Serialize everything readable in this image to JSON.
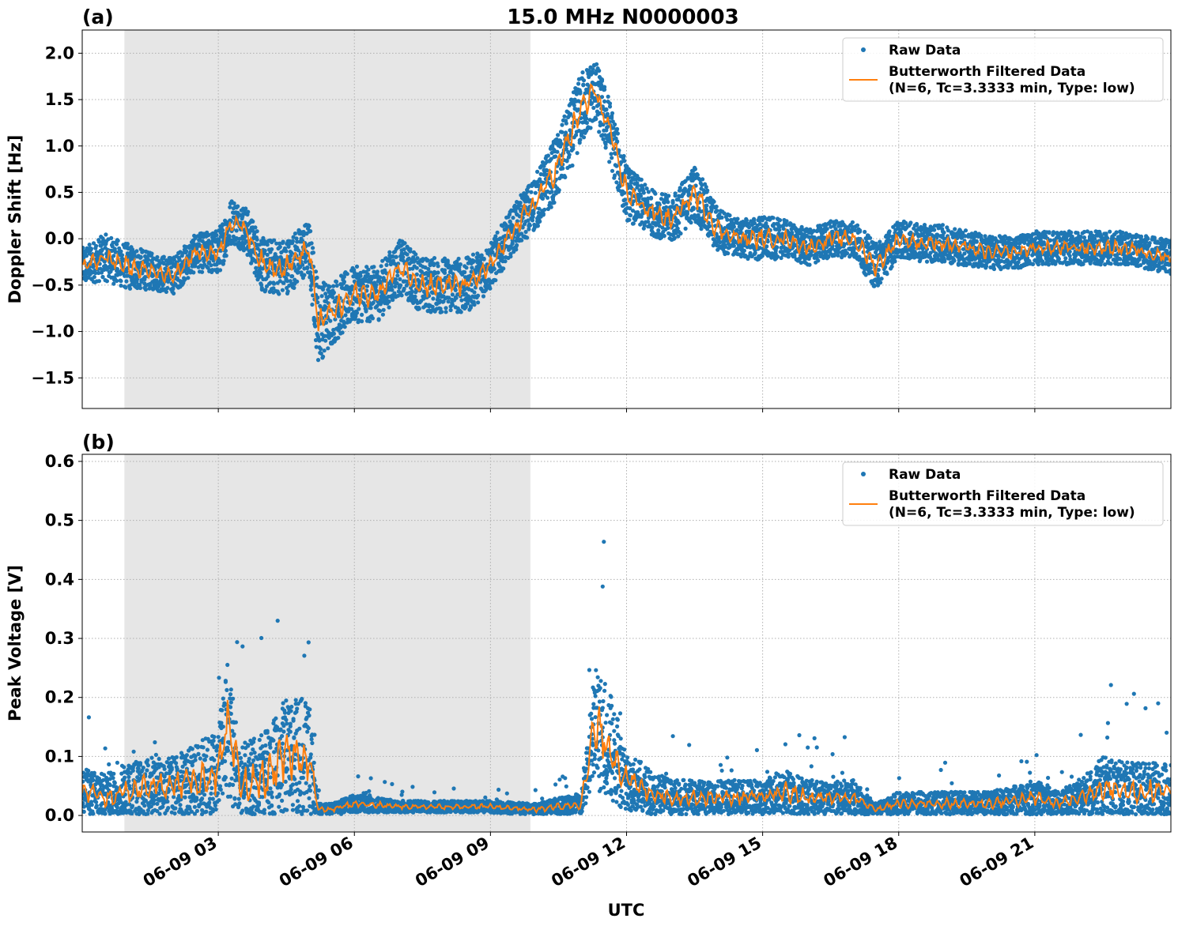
{
  "figure": {
    "title": "15.0 MHz N0000003",
    "xlabel": "UTC"
  },
  "chart_data": [
    {
      "panel_label": "(a)",
      "type": "scatter",
      "ylabel": "Doppler Shift [Hz]",
      "xlim": [
        0.0,
        24.0
      ],
      "ylim": [
        -1.83,
        2.25
      ],
      "yticks": [
        2.0,
        1.5,
        1.0,
        0.5,
        0.0,
        -0.5,
        -1.0,
        -1.5
      ],
      "ytick_labels": [
        "2.0",
        "1.5",
        "1.0",
        "0.5",
        "0.0",
        "−0.5",
        "−1.0",
        "−1.5"
      ],
      "xticks": [
        3,
        6,
        9,
        12,
        15,
        18,
        21
      ],
      "xtick_labels": [
        "06-09 03",
        "06-09 06",
        "06-09 09",
        "06-09 12",
        "06-09 15",
        "06-09 18",
        "06-09 21"
      ],
      "x_unit": "hours UTC",
      "shaded_region": [
        0.93,
        9.88
      ],
      "grid": true,
      "legend_position": "top-right",
      "series": [
        {
          "name": "Raw Data",
          "style": "points",
          "color": "#1f77b4",
          "x": [
            0.0,
            0.5,
            1.0,
            1.5,
            2.0,
            2.5,
            3.0,
            3.3,
            3.6,
            4.0,
            4.5,
            5.0,
            5.2,
            5.5,
            6.0,
            6.5,
            7.0,
            7.5,
            8.0,
            8.5,
            9.0,
            9.5,
            10.0,
            10.5,
            11.0,
            11.3,
            11.6,
            12.0,
            12.5,
            13.0,
            13.5,
            14.0,
            14.5,
            15.0,
            15.5,
            16.0,
            16.5,
            17.0,
            17.5,
            18.0,
            18.5,
            19.0,
            19.5,
            20.0,
            20.5,
            21.0,
            21.5,
            22.0,
            22.5,
            23.0,
            23.5,
            24.0
          ],
          "y": [
            -0.3,
            -0.2,
            -0.3,
            -0.35,
            -0.4,
            -0.15,
            -0.15,
            0.2,
            0.1,
            -0.3,
            -0.3,
            -0.1,
            -0.9,
            -0.8,
            -0.6,
            -0.6,
            -0.3,
            -0.5,
            -0.5,
            -0.5,
            -0.3,
            0.1,
            0.4,
            0.8,
            1.4,
            1.6,
            1.2,
            0.5,
            0.3,
            0.2,
            0.5,
            0.1,
            0.0,
            0.0,
            0.0,
            -0.1,
            0.0,
            0.0,
            -0.3,
            0.0,
            -0.05,
            -0.05,
            -0.1,
            -0.15,
            -0.15,
            -0.1,
            -0.1,
            -0.1,
            -0.1,
            -0.1,
            -0.15,
            -0.2
          ],
          "spread": [
            0.2,
            0.25,
            0.25,
            0.2,
            0.2,
            0.2,
            0.25,
            0.25,
            0.25,
            0.3,
            0.3,
            0.3,
            0.45,
            0.35,
            0.3,
            0.3,
            0.3,
            0.3,
            0.3,
            0.3,
            0.25,
            0.25,
            0.3,
            0.35,
            0.4,
            0.35,
            0.35,
            0.3,
            0.25,
            0.25,
            0.3,
            0.25,
            0.2,
            0.25,
            0.2,
            0.2,
            0.2,
            0.2,
            0.25,
            0.2,
            0.2,
            0.2,
            0.2,
            0.18,
            0.18,
            0.18,
            0.18,
            0.18,
            0.18,
            0.18,
            0.18,
            0.18
          ]
        },
        {
          "name": "Butterworth Filtered Data\n(N=6, Tc=3.3333 min, Type: low)",
          "style": "line",
          "color": "#ff7f0e",
          "x": [
            0.0,
            0.5,
            1.0,
            1.5,
            2.0,
            2.5,
            3.0,
            3.3,
            3.6,
            4.0,
            4.5,
            5.0,
            5.2,
            5.5,
            6.0,
            6.5,
            7.0,
            7.5,
            8.0,
            8.5,
            9.0,
            9.5,
            10.0,
            10.5,
            11.0,
            11.3,
            11.6,
            12.0,
            12.5,
            13.0,
            13.5,
            14.0,
            14.5,
            15.0,
            15.5,
            16.0,
            16.5,
            17.0,
            17.5,
            18.0,
            18.5,
            19.0,
            19.5,
            20.0,
            20.5,
            21.0,
            21.5,
            22.0,
            22.5,
            23.0,
            23.5,
            24.0
          ],
          "y": [
            -0.3,
            -0.2,
            -0.3,
            -0.35,
            -0.4,
            -0.15,
            -0.15,
            0.2,
            0.1,
            -0.3,
            -0.3,
            -0.1,
            -0.9,
            -0.8,
            -0.6,
            -0.6,
            -0.3,
            -0.5,
            -0.5,
            -0.5,
            -0.3,
            0.1,
            0.4,
            0.8,
            1.4,
            1.6,
            1.2,
            0.5,
            0.3,
            0.2,
            0.5,
            0.1,
            0.0,
            0.0,
            0.0,
            -0.1,
            0.0,
            0.0,
            -0.3,
            0.0,
            -0.05,
            -0.05,
            -0.1,
            -0.15,
            -0.15,
            -0.1,
            -0.1,
            -0.1,
            -0.1,
            -0.1,
            -0.15,
            -0.2
          ]
        }
      ]
    },
    {
      "panel_label": "(b)",
      "type": "scatter",
      "ylabel": "Peak Voltage [V]",
      "xlim": [
        0.0,
        24.0
      ],
      "ylim": [
        -0.028,
        0.612
      ],
      "yticks": [
        0.6,
        0.5,
        0.4,
        0.3,
        0.2,
        0.1,
        0.0
      ],
      "ytick_labels": [
        "0.6",
        "0.5",
        "0.4",
        "0.3",
        "0.2",
        "0.1",
        "0.0"
      ],
      "xticks": [
        3,
        6,
        9,
        12,
        15,
        18,
        21
      ],
      "xtick_labels": [
        "06-09 03",
        "06-09 06",
        "06-09 09",
        "06-09 12",
        "06-09 15",
        "06-09 18",
        "06-09 21"
      ],
      "x_unit": "hours UTC",
      "shaded_region": [
        0.93,
        9.88
      ],
      "grid": true,
      "legend_position": "top-right",
      "series": [
        {
          "name": "Raw Data",
          "style": "points",
          "color": "#1f77b4",
          "x": [
            0.0,
            0.5,
            1.0,
            1.5,
            2.0,
            2.5,
            3.0,
            3.2,
            3.5,
            4.0,
            4.5,
            5.0,
            5.2,
            5.5,
            6.0,
            7.0,
            8.0,
            9.0,
            10.0,
            11.0,
            11.3,
            11.6,
            12.0,
            12.5,
            13.0,
            14.0,
            15.0,
            15.5,
            16.0,
            17.0,
            17.5,
            18.0,
            19.0,
            20.0,
            21.0,
            21.5,
            22.0,
            22.5,
            23.0,
            23.5,
            24.0
          ],
          "y": [
            0.04,
            0.03,
            0.04,
            0.05,
            0.05,
            0.06,
            0.07,
            0.15,
            0.05,
            0.06,
            0.1,
            0.1,
            0.01,
            0.01,
            0.02,
            0.015,
            0.015,
            0.015,
            0.01,
            0.02,
            0.15,
            0.12,
            0.06,
            0.04,
            0.03,
            0.03,
            0.03,
            0.04,
            0.03,
            0.03,
            0.01,
            0.02,
            0.02,
            0.02,
            0.03,
            0.02,
            0.03,
            0.05,
            0.04,
            0.04,
            0.04
          ],
          "spread": [
            0.04,
            0.04,
            0.05,
            0.05,
            0.05,
            0.06,
            0.08,
            0.12,
            0.07,
            0.08,
            0.1,
            0.1,
            0.01,
            0.01,
            0.015,
            0.01,
            0.01,
            0.01,
            0.01,
            0.02,
            0.1,
            0.1,
            0.05,
            0.04,
            0.03,
            0.03,
            0.03,
            0.04,
            0.03,
            0.03,
            0.01,
            0.02,
            0.02,
            0.02,
            0.03,
            0.02,
            0.03,
            0.05,
            0.05,
            0.05,
            0.05
          ]
        },
        {
          "name": "Butterworth Filtered Data\n(N=6, Tc=3.3333 min, Type: low)",
          "style": "line",
          "color": "#ff7f0e",
          "x": [
            0.0,
            0.5,
            1.0,
            1.5,
            2.0,
            2.5,
            3.0,
            3.2,
            3.5,
            4.0,
            4.5,
            5.0,
            5.2,
            5.5,
            6.0,
            7.0,
            8.0,
            9.0,
            10.0,
            11.0,
            11.3,
            11.6,
            12.0,
            12.5,
            13.0,
            14.0,
            15.0,
            15.5,
            16.0,
            17.0,
            17.5,
            18.0,
            19.0,
            20.0,
            21.0,
            21.5,
            22.0,
            22.5,
            23.0,
            23.5,
            24.0
          ],
          "y": [
            0.04,
            0.03,
            0.04,
            0.05,
            0.05,
            0.06,
            0.07,
            0.15,
            0.05,
            0.06,
            0.1,
            0.1,
            0.01,
            0.01,
            0.02,
            0.015,
            0.015,
            0.015,
            0.01,
            0.02,
            0.15,
            0.12,
            0.06,
            0.04,
            0.03,
            0.03,
            0.03,
            0.04,
            0.03,
            0.03,
            0.01,
            0.02,
            0.02,
            0.02,
            0.03,
            0.02,
            0.03,
            0.05,
            0.04,
            0.04,
            0.04
          ]
        }
      ]
    }
  ]
}
